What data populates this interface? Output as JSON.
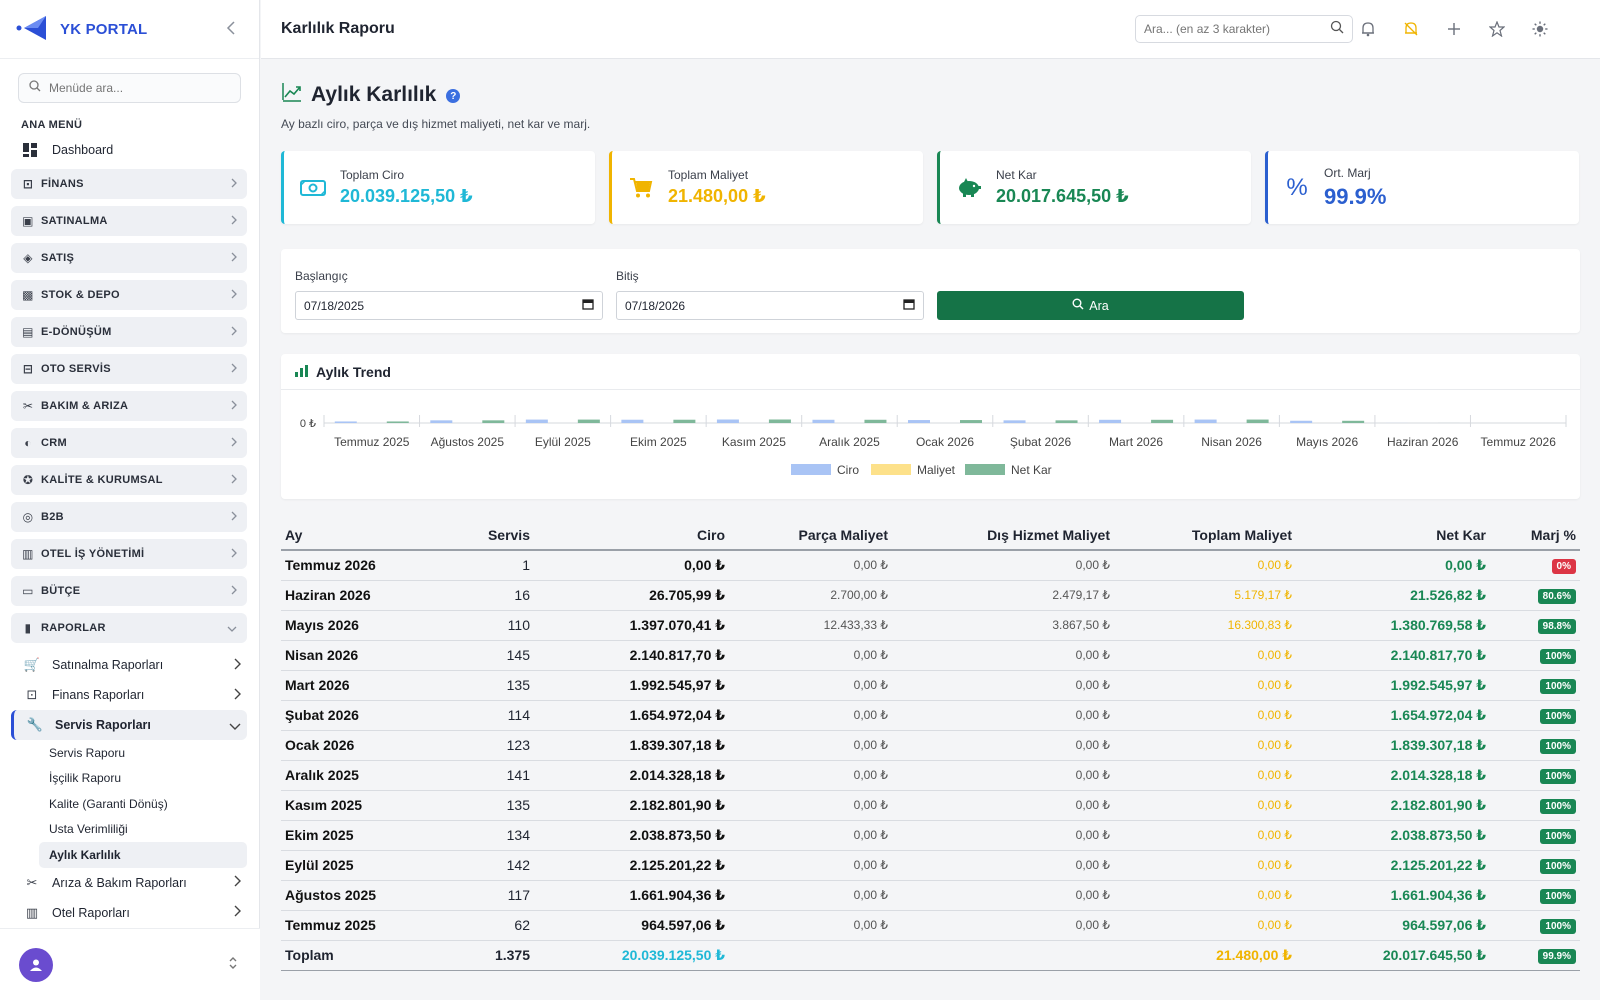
{
  "app": {
    "name": "YK PORTAL"
  },
  "sidebar": {
    "search_placeholder": "Menüde ara...",
    "section_title": "ANA MENÜ",
    "dashboard": "Dashboard",
    "groups": [
      "FİNANS",
      "SATINALMA",
      "SATIŞ",
      "STOK & DEPO",
      "E-DÖNÜŞÜM",
      "OTO SERVİS",
      "BAKIM & ARIZA",
      "CRM",
      "KALİTE & KURUMSAL",
      "B2B",
      "OTEL İŞ YÖNETİMİ",
      "BÜTÇE",
      "RAPORLAR"
    ],
    "reports_sub": [
      "Satınalma Raporları",
      "Finans Raporları",
      "Servis Raporları"
    ],
    "service_reports": [
      "Servis Raporu",
      "İşçilik Raporu",
      "Kalite (Garanti Dönüş)",
      "Usta Verimliliği",
      "Aylık Karlılık"
    ],
    "reports_sub_after": [
      "Arıza & Bakım Raporları",
      "Otel Raporları"
    ]
  },
  "header": {
    "title": "Karlılık Raporu",
    "search_placeholder": "Ara... (en az 3 karakter)"
  },
  "page": {
    "title": "Aylık Karlılık",
    "subtitle": "Ay bazlı ciro, parça ve dış hizmet maliyeti, net kar ve marj."
  },
  "kpis": [
    {
      "label": "Toplam Ciro",
      "value": "20.039.125,50 ₺",
      "color": "#1fb8d6"
    },
    {
      "label": "Toplam Maliyet",
      "value": "21.480,00 ₺",
      "color": "#f0b400"
    },
    {
      "label": "Net Kar",
      "value": "20.017.645,50 ₺",
      "color": "#198754"
    },
    {
      "label": "Ort. Marj",
      "value": "99.9%",
      "color": "#2b5fcf"
    }
  ],
  "filter": {
    "start_label": "Başlangıç",
    "start_value": "07/18/2025",
    "end_label": "Bitiş",
    "end_value": "07/18/2026",
    "button": "Ara"
  },
  "chart_data": {
    "type": "bar",
    "title": "Aylık Trend",
    "categories": [
      "Temmuz 2025",
      "Ağustos 2025",
      "Eylül 2025",
      "Ekim 2025",
      "Kasım 2025",
      "Aralık 2025",
      "Ocak 2026",
      "Şubat 2026",
      "Mart 2026",
      "Nisan 2026",
      "Mayıs 2026",
      "Haziran 2026",
      "Temmuz 2026"
    ],
    "y_tick": "0 ₺",
    "series": [
      {
        "name": "Ciro",
        "color": "#a9c4f5",
        "values": [
          964597.06,
          1661904.36,
          2125201.22,
          2038873.5,
          2182801.9,
          2014328.18,
          1839307.18,
          1654972.04,
          1992545.97,
          2140817.7,
          1397070.41,
          26705.99,
          0
        ]
      },
      {
        "name": "Maliyet",
        "color": "#fde18a",
        "values": [
          0,
          0,
          0,
          0,
          0,
          0,
          0,
          0,
          0,
          0,
          16300.83,
          5179.17,
          0
        ]
      },
      {
        "name": "Net Kar",
        "color": "#7fb89a",
        "values": [
          964597.06,
          1661904.36,
          2125201.22,
          2038873.5,
          2182801.9,
          2014328.18,
          1839307.18,
          1654972.04,
          1992545.97,
          2140817.7,
          1380769.58,
          21526.82,
          0
        ]
      }
    ],
    "legend": "bottom-center"
  },
  "table": {
    "headers": [
      "Ay",
      "Servis",
      "Ciro",
      "Parça Maliyet",
      "Dış Hizmet Maliyet",
      "Toplam Maliyet",
      "Net Kar",
      "Marj %"
    ],
    "rows": [
      [
        "Temmuz 2026",
        "1",
        "0,00 ₺",
        "0,00 ₺",
        "0,00 ₺",
        "0,00 ₺",
        "0,00 ₺",
        "0%"
      ],
      [
        "Haziran 2026",
        "16",
        "26.705,99 ₺",
        "2.700,00 ₺",
        "2.479,17 ₺",
        "5.179,17 ₺",
        "21.526,82 ₺",
        "80.6%"
      ],
      [
        "Mayıs 2026",
        "110",
        "1.397.070,41 ₺",
        "12.433,33 ₺",
        "3.867,50 ₺",
        "16.300,83 ₺",
        "1.380.769,58 ₺",
        "98.8%"
      ],
      [
        "Nisan 2026",
        "145",
        "2.140.817,70 ₺",
        "0,00 ₺",
        "0,00 ₺",
        "0,00 ₺",
        "2.140.817,70 ₺",
        "100%"
      ],
      [
        "Mart 2026",
        "135",
        "1.992.545,97 ₺",
        "0,00 ₺",
        "0,00 ₺",
        "0,00 ₺",
        "1.992.545,97 ₺",
        "100%"
      ],
      [
        "Şubat 2026",
        "114",
        "1.654.972,04 ₺",
        "0,00 ₺",
        "0,00 ₺",
        "0,00 ₺",
        "1.654.972,04 ₺",
        "100%"
      ],
      [
        "Ocak 2026",
        "123",
        "1.839.307,18 ₺",
        "0,00 ₺",
        "0,00 ₺",
        "0,00 ₺",
        "1.839.307,18 ₺",
        "100%"
      ],
      [
        "Aralık 2025",
        "141",
        "2.014.328,18 ₺",
        "0,00 ₺",
        "0,00 ₺",
        "0,00 ₺",
        "2.014.328,18 ₺",
        "100%"
      ],
      [
        "Kasım 2025",
        "135",
        "2.182.801,90 ₺",
        "0,00 ₺",
        "0,00 ₺",
        "0,00 ₺",
        "2.182.801,90 ₺",
        "100%"
      ],
      [
        "Ekim 2025",
        "134",
        "2.038.873,50 ₺",
        "0,00 ₺",
        "0,00 ₺",
        "0,00 ₺",
        "2.038.873,50 ₺",
        "100%"
      ],
      [
        "Eylül 2025",
        "142",
        "2.125.201,22 ₺",
        "0,00 ₺",
        "0,00 ₺",
        "0,00 ₺",
        "2.125.201,22 ₺",
        "100%"
      ],
      [
        "Ağustos 2025",
        "117",
        "1.661.904,36 ₺",
        "0,00 ₺",
        "0,00 ₺",
        "0,00 ₺",
        "1.661.904,36 ₺",
        "100%"
      ],
      [
        "Temmuz 2025",
        "62",
        "964.597,06 ₺",
        "0,00 ₺",
        "0,00 ₺",
        "0,00 ₺",
        "964.597,06 ₺",
        "100%"
      ]
    ],
    "total": {
      "label": "Toplam",
      "servis": "1.375",
      "ciro": "20.039.125,50 ₺",
      "toplam_maliyet": "21.480,00 ₺",
      "net_kar": "20.017.645,50 ₺",
      "marj": "99.9%"
    },
    "colors": {
      "badge_red": "#dc3545",
      "badge_green": "#198754",
      "ciro_total": "#1fb8d6",
      "cost": "#f0b400",
      "profit": "#198754"
    }
  }
}
